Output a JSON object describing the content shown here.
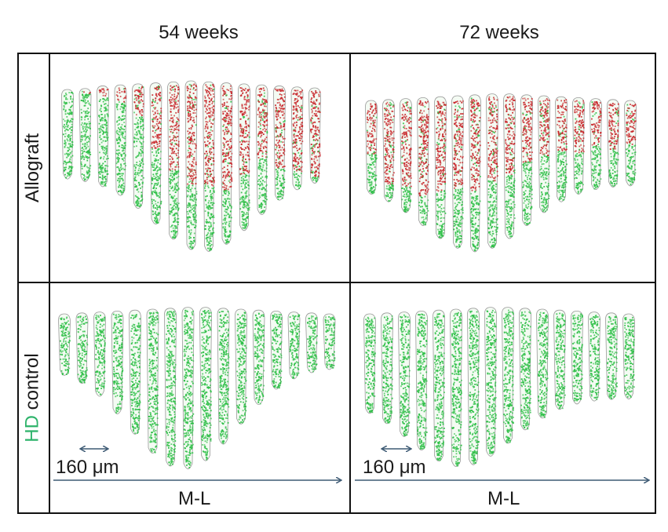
{
  "columns": [
    "54 weeks",
    "72 weeks"
  ],
  "rows": {
    "allograft": "Allograft",
    "hd_prefix": "HD",
    "hd_suffix": " control"
  },
  "scale_bar": {
    "label": "160 μm"
  },
  "axis": {
    "label": "M-L"
  },
  "colors": {
    "graft_red": "#c8262b",
    "host_green": "#2fbf48",
    "outline_grey": "#9a9a9a",
    "arrow": "#3d5a74",
    "hd_label": "#2db36a"
  },
  "panels": [
    {
      "id": "allograft-54",
      "slices": 15,
      "red_fraction": [
        0.0,
        0.05,
        0.1,
        0.15,
        0.25,
        0.45,
        0.55,
        0.6,
        0.6,
        0.65,
        0.6,
        0.55,
        0.7,
        0.8,
        0.9
      ]
    },
    {
      "id": "allograft-72",
      "slices": 16,
      "red_fraction": [
        0.55,
        0.8,
        0.75,
        0.75,
        0.65,
        0.6,
        0.6,
        0.55,
        0.55,
        0.5,
        0.5,
        0.5,
        0.55,
        0.5,
        0.55,
        0.5
      ]
    },
    {
      "id": "hd-54",
      "slices": 16,
      "red_fraction": [
        0,
        0,
        0,
        0,
        0,
        0,
        0,
        0,
        0,
        0,
        0,
        0,
        0,
        0,
        0,
        0
      ]
    },
    {
      "id": "hd-72",
      "slices": 16,
      "red_fraction": [
        0,
        0,
        0,
        0,
        0,
        0,
        0,
        0,
        0,
        0,
        0,
        0,
        0,
        0,
        0,
        0
      ]
    }
  ]
}
